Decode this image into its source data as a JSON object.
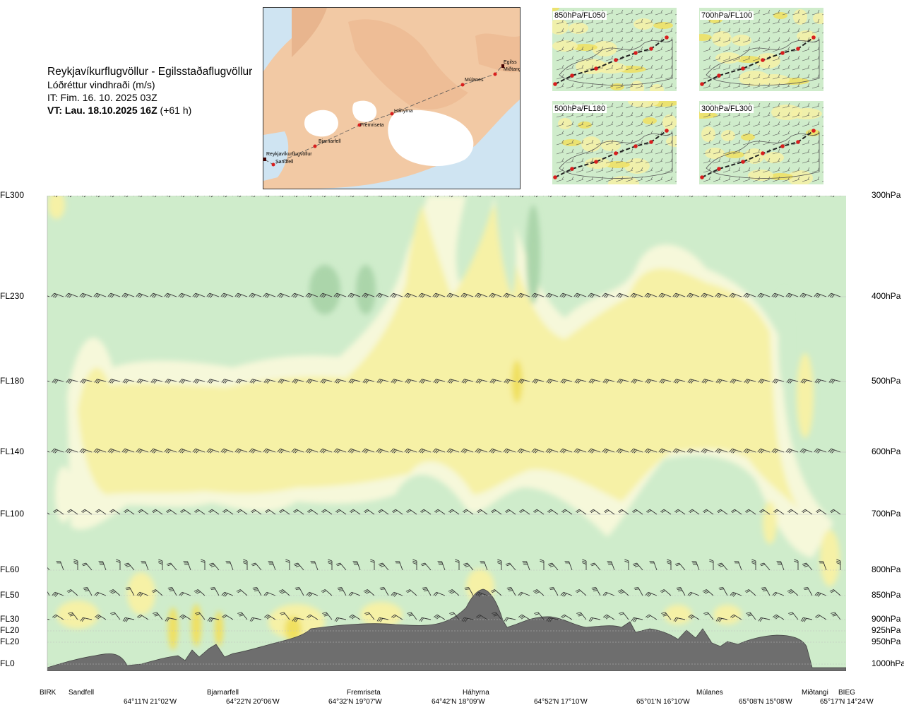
{
  "header": {
    "route": "Reykjavíkurflugvöllur - Egilsstaðaflugvöllur",
    "variable": "Lóðréttur vindhraði (m/s)",
    "it": "IT: Fim. 16. 10. 2025 03Z",
    "vt_bold": "VT: Lau. 18.10.2025 16Z",
    "vt_lead": " (+61 h)"
  },
  "map": {
    "places": [
      "Reykjavíkurflugvöllur",
      "Sandfell",
      "Bjarnarfell",
      "Fremriseta",
      "Háhyrna",
      "Múlanes",
      "Miðtangi",
      "Egilss"
    ]
  },
  "insets": [
    {
      "label": "850hPa/FL050"
    },
    {
      "label": "700hPa/FL100"
    },
    {
      "label": "500hPa/FL180"
    },
    {
      "label": "300hPa/FL300"
    }
  ],
  "colors": {
    "green": "#cfeccb",
    "dark_green": "#abd5aa",
    "pale": "#f6f8da",
    "yellow": "#f6f1a6",
    "deep_yellow": "#f0e060",
    "terrain": "#6e6e6e"
  },
  "chart_data": {
    "type": "heatmap",
    "levels": [
      {
        "fl": "FL300",
        "hpa": "300hPa"
      },
      {
        "fl": "FL230",
        "hpa": "400hPa"
      },
      {
        "fl": "FL180",
        "hpa": "500hPa"
      },
      {
        "fl": "FL140",
        "hpa": "600hPa"
      },
      {
        "fl": "FL100",
        "hpa": "700hPa"
      },
      {
        "fl": "FL60",
        "hpa": "800hPa"
      },
      {
        "fl": "FL50",
        "hpa": "850hPa"
      },
      {
        "fl": "FL30",
        "hpa": "900hPa"
      },
      {
        "fl": "FL20",
        "hpa": "925hPa"
      },
      {
        "fl": "FL20",
        "hpa": "950hPa"
      },
      {
        "fl": "FL0",
        "hpa": "1000hPa"
      }
    ],
    "waypoints": [
      "BIRK",
      "Sandfell",
      "Bjarnarfell",
      "Fremriseta",
      "Háhyrna",
      "Múlanes",
      "Miðtangi",
      "BIEG"
    ],
    "coordinates": [
      "64°11'N 21°02'W",
      "64°22'N 20°06'W",
      "64°32'N 19°07'W",
      "64°42'N 18°09'W",
      "64°52'N 17°10'W",
      "65°01'N 16°10'W",
      "65°08'N 15°08'W",
      "65°17'N 14°24'W"
    ]
  }
}
